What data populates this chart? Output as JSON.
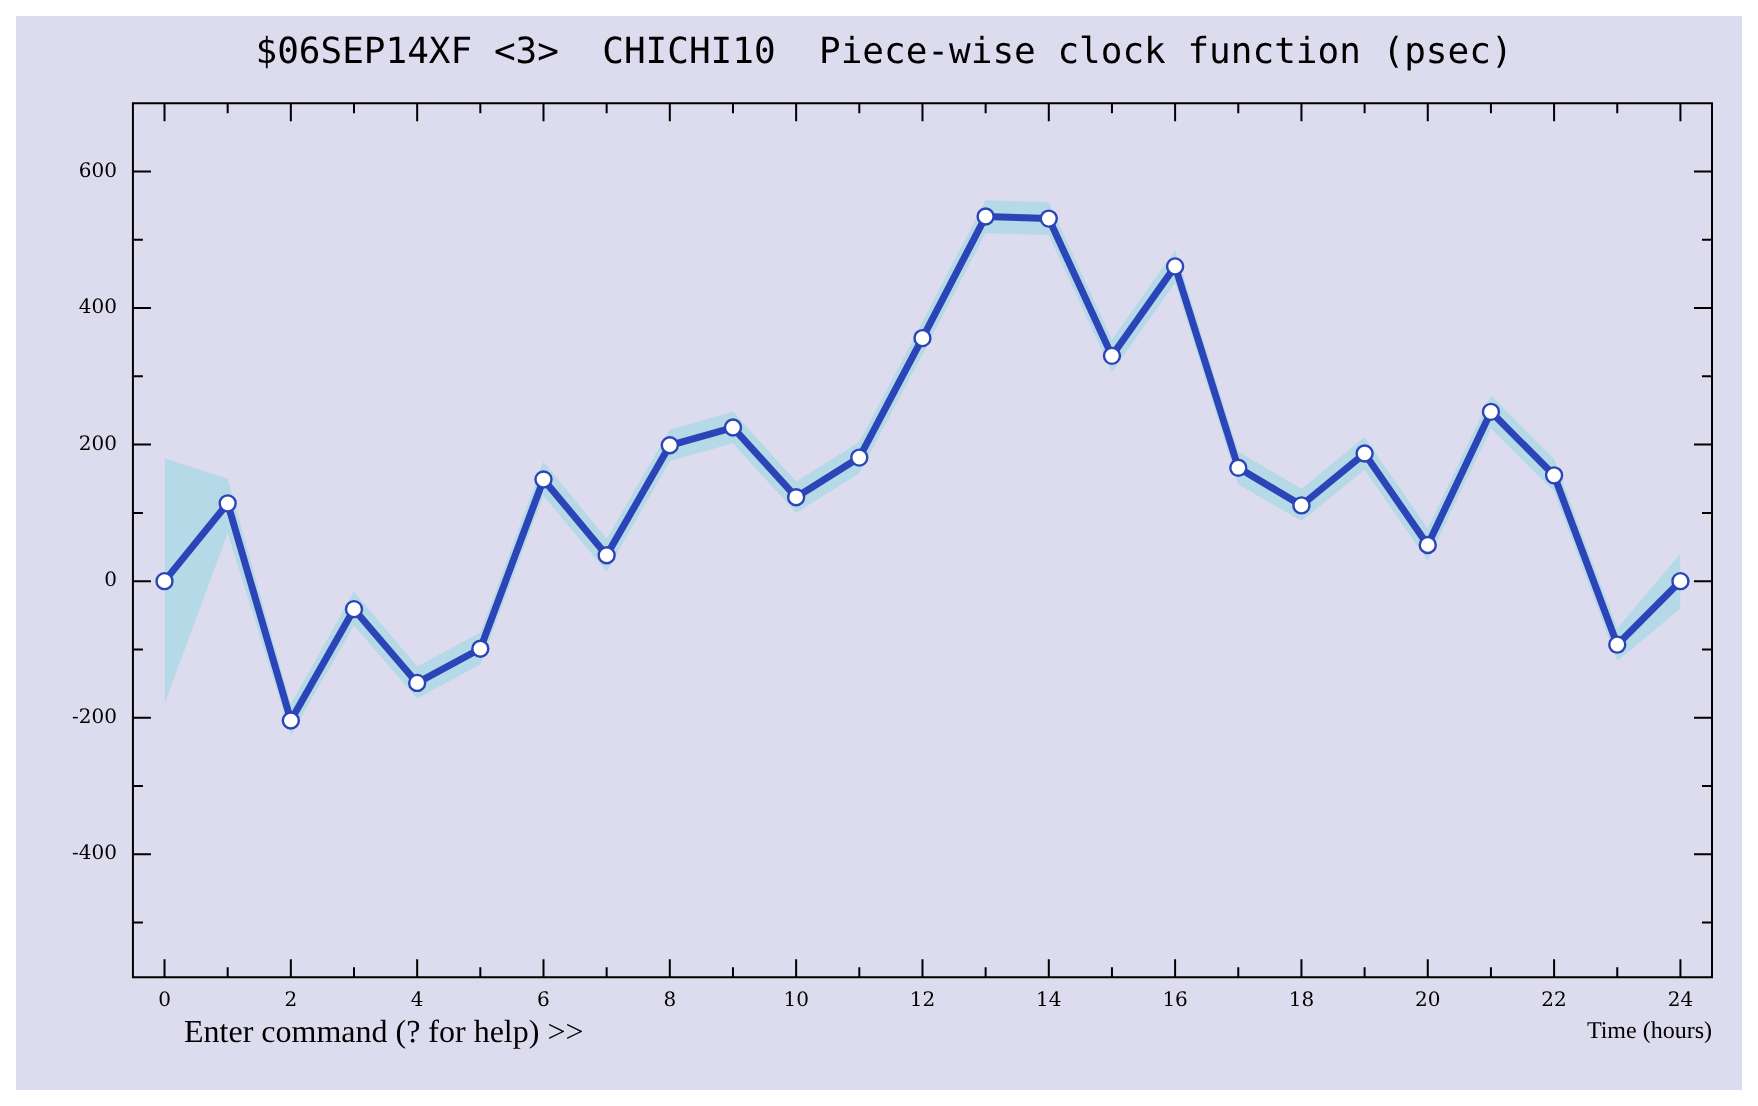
{
  "chart_data": {
    "type": "line",
    "title": "$06SEP14XF <3>  CHICHI10  Piece-wise clock function (psec)",
    "xlabel": "Time (hours)",
    "x": [
      0,
      1,
      2,
      3,
      4,
      5,
      6,
      7,
      8,
      9,
      10,
      11,
      12,
      13,
      14,
      15,
      16,
      17,
      18,
      19,
      20,
      21,
      22,
      23,
      24
    ],
    "series": [
      {
        "color": "#2b44b8",
        "values": [
          0,
          114,
          -204,
          -41,
          -149,
          -99,
          149,
          38,
          199,
          225,
          123,
          181,
          356,
          534,
          531,
          330,
          461,
          166,
          111,
          187,
          53,
          248,
          155,
          -93,
          0
        ],
        "lower": [
          -180,
          70,
          -225,
          -65,
          -172,
          -122,
          125,
          14,
          176,
          202,
          100,
          158,
          332,
          510,
          507,
          306,
          437,
          142,
          88,
          163,
          30,
          224,
          131,
          -117,
          -40
        ],
        "upper": [
          180,
          150,
          -180,
          -15,
          -125,
          -75,
          175,
          62,
          222,
          248,
          146,
          204,
          380,
          558,
          555,
          354,
          485,
          190,
          135,
          211,
          77,
          272,
          179,
          -69,
          40
        ]
      }
    ],
    "xlim": [
      -0.5,
      24.5
    ],
    "ylim": [
      -580,
      700
    ],
    "xticks": [
      0,
      {
        "value": 1,
        "label": null
      },
      2,
      {
        "value": 3,
        "label": null
      },
      4,
      {
        "value": 5,
        "label": null
      },
      6,
      {
        "value": 7,
        "label": null
      },
      8,
      {
        "value": 9,
        "label": null
      },
      10,
      {
        "value": 11,
        "label": null
      },
      12,
      {
        "value": 13,
        "label": null
      },
      14,
      {
        "value": 15,
        "label": null
      },
      16,
      {
        "value": 17,
        "label": null
      },
      18,
      {
        "value": 19,
        "label": null
      },
      20,
      {
        "value": 21,
        "label": null
      },
      22,
      {
        "value": 23,
        "label": null
      },
      24
    ],
    "yticks": [
      {
        "value": -500,
        "label": null
      },
      -400,
      {
        "value": -300,
        "label": null
      },
      -200,
      {
        "value": -100,
        "label": null
      },
      0,
      {
        "value": 100,
        "label": null
      },
      200,
      {
        "value": 300,
        "label": null
      },
      400,
      {
        "value": 500,
        "label": null
      },
      600
    ],
    "marker": "circle",
    "line_style": "solid",
    "grid": false,
    "legend": false,
    "annotations": [
      "Enter command (? for help) >>"
    ]
  }
}
